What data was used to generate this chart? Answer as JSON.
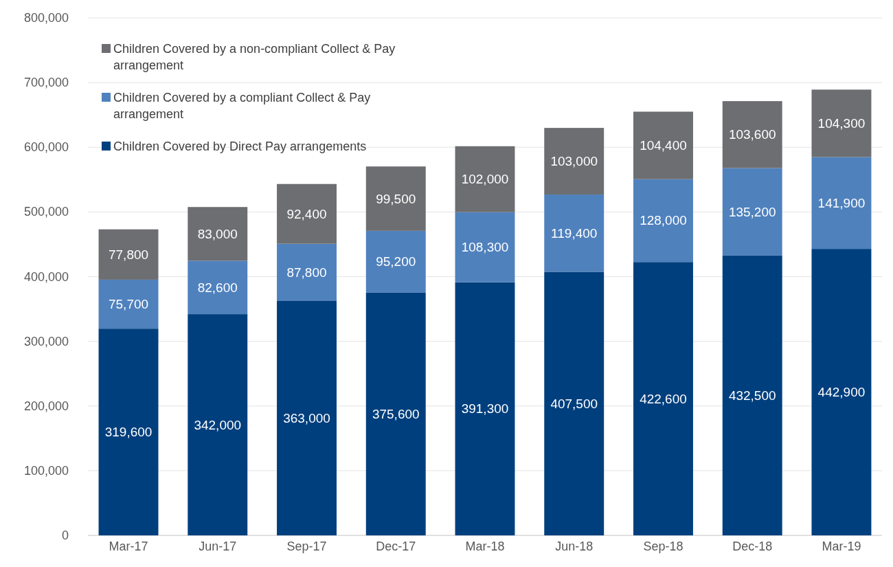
{
  "chart_data": {
    "type": "bar",
    "stacked": true,
    "categories": [
      "Mar-17",
      "Jun-17",
      "Sep-17",
      "Dec-17",
      "Mar-18",
      "Jun-18",
      "Sep-18",
      "Dec-18",
      "Mar-19"
    ],
    "series": [
      {
        "name": "Children Covered by Direct Pay arrangements",
        "color": "#003f7d",
        "values": [
          319600,
          342000,
          363000,
          375600,
          391300,
          407500,
          422600,
          432500,
          442900
        ],
        "value_labels": [
          "319,600",
          "342,000",
          "363,000",
          "375,600",
          "391,300",
          "407,500",
          "422,600",
          "432,500",
          "442,900"
        ]
      },
      {
        "name": "Children Covered by a compliant Collect & Pay arrangement",
        "color": "#4f81bd",
        "values": [
          75700,
          82600,
          87800,
          95200,
          108300,
          119400,
          128000,
          135200,
          141900
        ],
        "value_labels": [
          "75,700",
          "82,600",
          "87,800",
          "95,200",
          "108,300",
          "119,400",
          "128,000",
          "135,200",
          "141,900"
        ]
      },
      {
        "name": "Children Covered by a non-compliant Collect & Pay arrangement",
        "color": "#6d6e71",
        "values": [
          77800,
          83000,
          92400,
          99500,
          102000,
          103000,
          104400,
          103600,
          104300
        ],
        "value_labels": [
          "77,800",
          "83,000",
          "92,400",
          "99,500",
          "102,000",
          "103,000",
          "104,400",
          "103,600",
          "104,300"
        ]
      }
    ],
    "ylim": [
      0,
      800000
    ],
    "yticks": [
      0,
      {
        "value": 100000,
        "label": "100,000"
      },
      {
        "value": 200000,
        "label": "200,000"
      },
      {
        "value": 300000,
        "label": "300,000"
      },
      {
        "value": 400000,
        "label": "400,000"
      },
      {
        "value": 500000,
        "label": "500,000"
      },
      {
        "value": 600000,
        "label": "600,000"
      },
      {
        "value": 700000,
        "label": "700,000"
      },
      {
        "value": 800000,
        "label": "800,000"
      }
    ],
    "grid": "y",
    "legend": "top left"
  }
}
